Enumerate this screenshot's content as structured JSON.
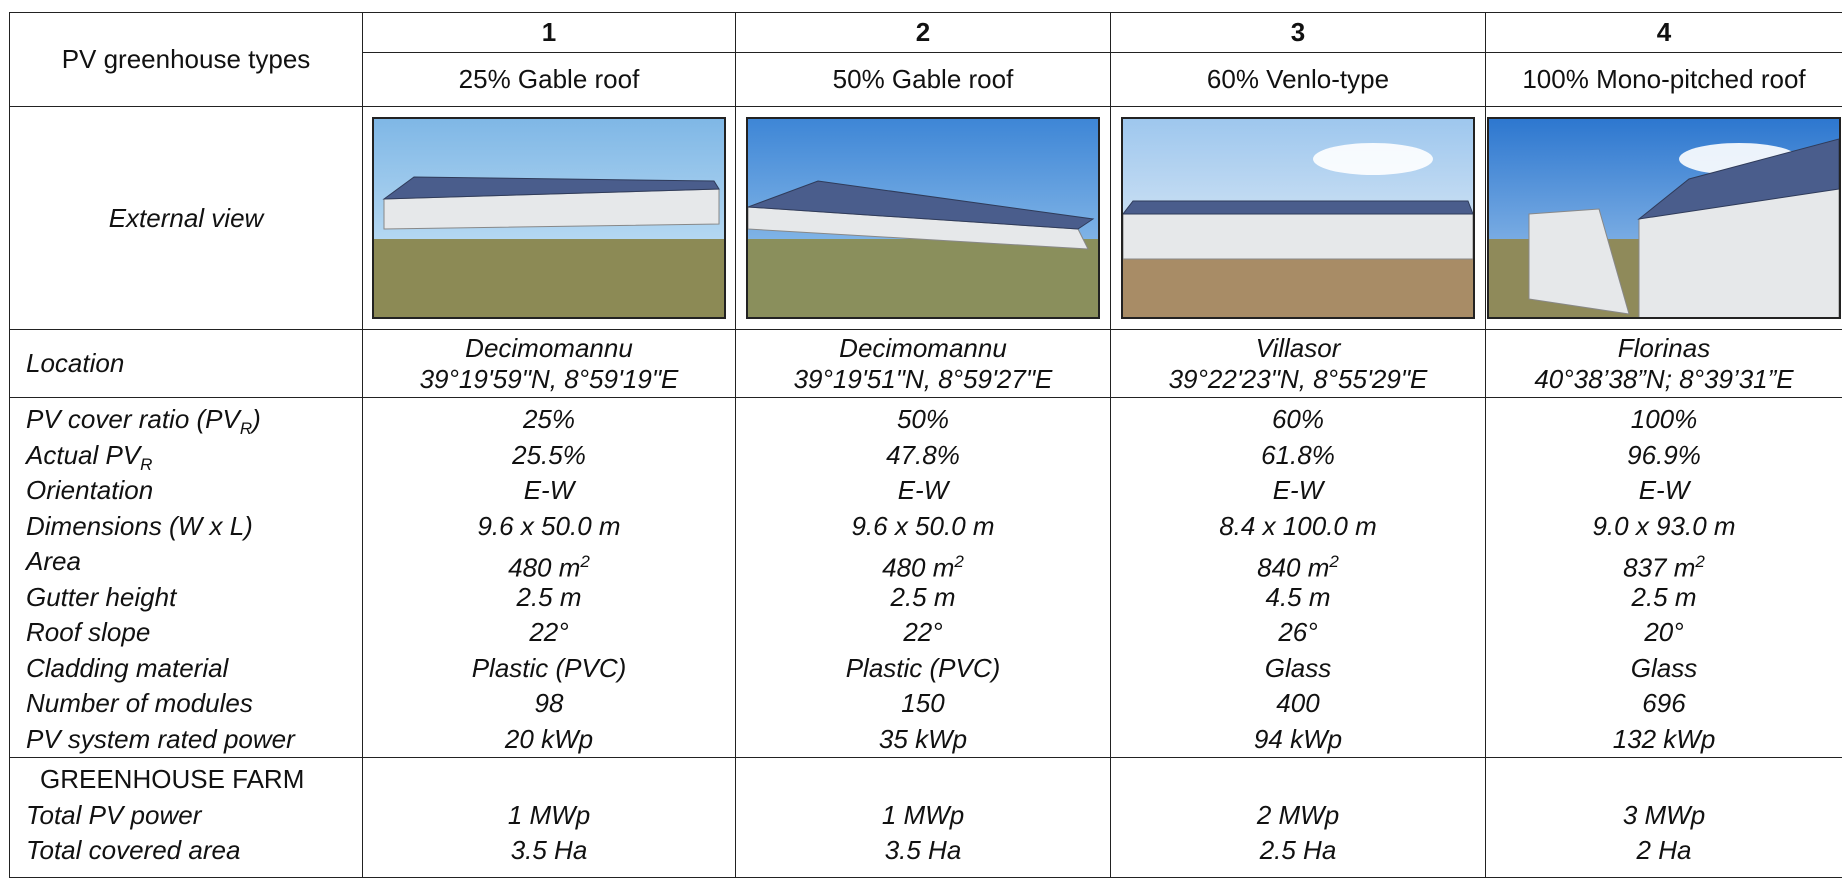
{
  "header": {
    "row_label": "PV greenhouse types",
    "numbers": [
      "1",
      "2",
      "3",
      "4"
    ],
    "types": [
      "25% Gable roof",
      "50% Gable roof",
      "60% Venlo-type",
      "100% Mono-pitched roof"
    ]
  },
  "external_view": {
    "label": "External view"
  },
  "location": {
    "label": "Location",
    "values": [
      {
        "name": "Decimomannu",
        "coords": "39°19'59\"N, 8°59'19\"E"
      },
      {
        "name": "Decimomannu",
        "coords": "39°19'51\"N, 8°59'27\"E"
      },
      {
        "name": "Villasor",
        "coords": "39°22'23\"N, 8°55'29\"E"
      },
      {
        "name": "Florinas",
        "coords": "40°38’38”N; 8°39’31”E"
      }
    ]
  },
  "parameters": [
    {
      "label": {
        "text": "PV cover ratio (PV",
        "sub": "R",
        "tail": ")"
      },
      "values": [
        "25%",
        "50%",
        "60%",
        "100%"
      ]
    },
    {
      "label": {
        "text": "Actual PV",
        "sub": "R"
      },
      "values": [
        "25.5%",
        "47.8%",
        "61.8%",
        "96.9%"
      ]
    },
    {
      "label": "Orientation",
      "values": [
        "E-W",
        "E-W",
        "E-W",
        "E-W"
      ]
    },
    {
      "label": "Dimensions (W x L)",
      "values": [
        "9.6 x 50.0 m",
        "9.6 x 50.0 m",
        "8.4 x 100.0 m",
        "9.0 x 93.0 m"
      ]
    },
    {
      "label": "Area",
      "values": [
        {
          "text": "480 m",
          "sup": "2"
        },
        {
          "text": "480 m",
          "sup": "2"
        },
        {
          "text": "840 m",
          "sup": "2"
        },
        {
          "text": "837 m",
          "sup": "2"
        }
      ]
    },
    {
      "label": "Gutter height",
      "values": [
        "2.5 m",
        "2.5 m",
        "4.5 m",
        "2.5 m"
      ]
    },
    {
      "label": "Roof slope",
      "values": [
        "22°",
        "22°",
        "26°",
        "20°"
      ]
    },
    {
      "label": "Cladding material",
      "values": [
        "Plastic (PVC)",
        "Plastic (PVC)",
        "Glass",
        "Glass"
      ]
    },
    {
      "label": "Number of modules",
      "values": [
        "98",
        "150",
        "400",
        "696"
      ]
    },
    {
      "label": "PV system rated power",
      "values": [
        "20 kWp",
        "35 kWp",
        "94 kWp",
        "132 kWp"
      ]
    }
  ],
  "farm": {
    "title": "GREENHOUSE FARM",
    "rows": [
      {
        "label": "Total PV power",
        "values": [
          "1 MWp",
          "1 MWp",
          "2 MWp",
          "3 MWp"
        ]
      },
      {
        "label": "Total covered area",
        "values": [
          "3.5 Ha",
          "3.5 Ha",
          "2.5 Ha",
          "2 Ha"
        ]
      }
    ]
  }
}
